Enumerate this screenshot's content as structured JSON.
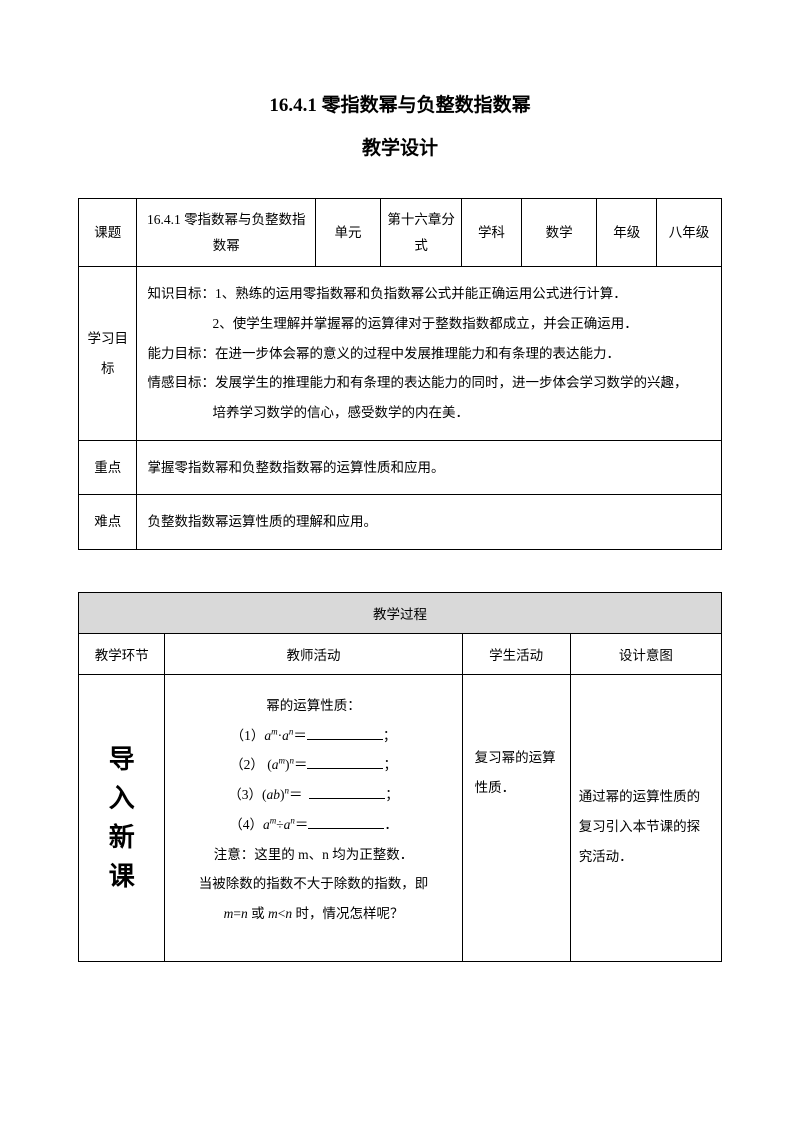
{
  "title_main": "16.4.1 零指数幂与负整数指数幂",
  "title_sub": "教学设计",
  "table1": {
    "row1": {
      "topic_label": "课题",
      "topic_value": "16.4.1 零指数幂与负整数指数幂",
      "unit_label": "单元",
      "unit_value": "第十六章分式",
      "subject_label": "学科",
      "subject_value": "数学",
      "grade_label": "年级",
      "grade_value": "八年级"
    },
    "row2": {
      "label": "学习目标",
      "line1": "知识目标：1、熟练的运用零指数幂和负指数幂公式并能正确运用公式进行计算．",
      "line1b": "2、使学生理解并掌握幂的运算律对于整数指数都成立，并会正确运用．",
      "line2": "能力目标：在进一步体会幂的意义的过程中发展推理能力和有条理的表达能力．",
      "line3": "情感目标：发展学生的推理能力和有条理的表达能力的同时，进一步体会学习数学的兴趣，",
      "line3b": "培养学习数学的信心，感受数学的内在美．"
    },
    "row3": {
      "label": "重点",
      "content": "掌握零指数幂和负整数指数幂的运算性质和应用。"
    },
    "row4": {
      "label": "难点",
      "content": "负整数指数幂运算性质的理解和应用。"
    }
  },
  "table2": {
    "header": "教学过程",
    "headers": {
      "phase": "教学环节",
      "teacher": "教师活动",
      "student": "学生活动",
      "design": "设计意图"
    },
    "row3": {
      "phase1": "导",
      "phase2": "入",
      "phase3": "新",
      "phase4": "课",
      "teacher": {
        "l1": "幂的运算性质：",
        "l5": "注意：这里的 m、n 均为正整数．",
        "l6": "当被除数的指数不大于除数的指数，即",
        "l7": "m=n 或 m<n 时，情况怎样呢？"
      },
      "student": "复习幂的运算性质．",
      "design": "通过幂的运算性质的复习引入本节课的探究活动．"
    }
  }
}
